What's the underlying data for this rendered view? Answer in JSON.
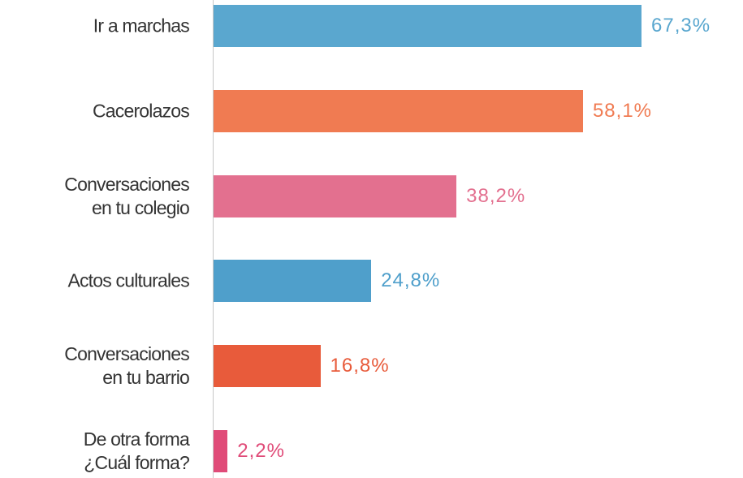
{
  "chart_data": {
    "type": "bar",
    "orientation": "horizontal",
    "categories": [
      "Ir a marchas",
      "Cacerolazos",
      "Conversaciones\nen tu colegio",
      "Actos culturales",
      "Conversaciones\nen tu barrio",
      "De otra forma\n¿Cuál forma?"
    ],
    "values": [
      67.3,
      58.1,
      38.2,
      24.8,
      16.8,
      2.2
    ],
    "value_labels": [
      "67,3%",
      "58,1%",
      "38,2%",
      "24,8%",
      "16,8%",
      "2,2%"
    ],
    "colors": [
      "#5aa7cf",
      "#f07b52",
      "#e3708f",
      "#4f9fcb",
      "#e85b3b",
      "#e04b78"
    ]
  }
}
